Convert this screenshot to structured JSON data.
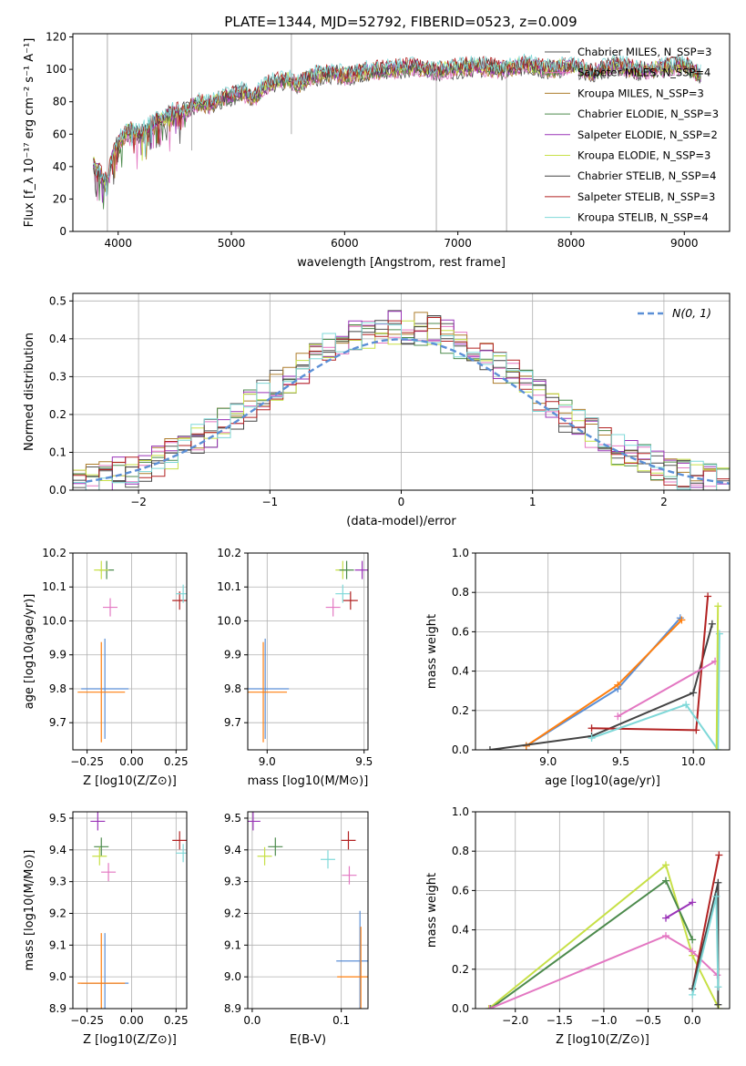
{
  "figure_title": "PLATE=1344, MJD=52792, FIBERID=0523, z=0.009",
  "chart_data": [
    {
      "id": "spectrum",
      "type": "line",
      "xlabel": "wavelength [Angstrom, rest frame]",
      "ylabel": "Flux [f_λ 10⁻¹⁷ erg cm⁻² s⁻¹ A⁻¹]",
      "xlim": [
        3600,
        9400
      ],
      "ylim": [
        0,
        122
      ],
      "xticks": [
        4000,
        5000,
        6000,
        7000,
        8000,
        9000
      ],
      "yticks": [
        0,
        20,
        40,
        60,
        80,
        100,
        120
      ],
      "x": [
        3780,
        3850,
        3900,
        3950,
        4000,
        4100,
        4200,
        4300,
        4400,
        4500,
        4600,
        4700,
        4800,
        4900,
        5000,
        5100,
        5200,
        5300,
        5400,
        5500,
        5600,
        5700,
        5800,
        5900,
        6000,
        6200,
        6400,
        6600,
        6800,
        7000,
        7200,
        7400,
        7600,
        7800,
        8000,
        8200,
        8400,
        8600,
        8800,
        9000,
        9150
      ],
      "y": [
        42,
        35,
        30,
        48,
        55,
        62,
        60,
        67,
        70,
        74,
        75,
        80,
        78,
        82,
        84,
        86,
        83,
        90,
        92,
        94,
        91,
        96,
        97,
        98,
        96,
        99,
        100,
        102,
        99,
        101,
        102,
        100,
        103,
        100,
        102,
        98,
        103,
        99,
        101,
        103,
        96
      ],
      "legend": [
        {
          "name": "Chabrier MILES, N_SSP=3",
          "color": "#555555"
        },
        {
          "name": "Salpeter MILES, N_SSP=4",
          "color": "#e377c2"
        },
        {
          "name": "Kroupa MILES, N_SSP=3",
          "color": "#ad7d2c"
        },
        {
          "name": "Chabrier ELODIE, N_SSP=3",
          "color": "#4c8a4c"
        },
        {
          "name": "Salpeter ELODIE, N_SSP=2",
          "color": "#9a33b8"
        },
        {
          "name": "Kroupa ELODIE, N_SSP=3",
          "color": "#c7e046"
        },
        {
          "name": "Chabrier STELIB, N_SSP=4",
          "color": "#444444"
        },
        {
          "name": "Salpeter STELIB, N_SSP=3",
          "color": "#b22222"
        },
        {
          "name": "Kroupa STELIB, N_SSP=4",
          "color": "#7fd8d8"
        }
      ],
      "legend_position": "top-right"
    },
    {
      "id": "residuals",
      "type": "line",
      "xlabel": "(data-model)/error",
      "ylabel": "Normed distribution",
      "xlim": [
        -2.5,
        2.5
      ],
      "ylim": [
        0,
        0.52
      ],
      "xticks": [
        -2,
        -1,
        0,
        1,
        2
      ],
      "yticks": [
        0.0,
        0.1,
        0.2,
        0.3,
        0.4,
        0.5
      ],
      "legend": "N(0, 1)",
      "legend_position": "top-right",
      "grid": true
    },
    {
      "id": "age-vs-Z",
      "type": "scatter",
      "xlabel": "Z [log10(Z/Z⊙)]",
      "ylabel": "age [log10(age/yr)]",
      "xlim": [
        -0.33,
        0.31
      ],
      "ylim": [
        9.62,
        10.2
      ],
      "xticks": [
        -0.25,
        0.0,
        0.25
      ],
      "xticklabels": [
        "−0.25",
        "0.00",
        "0.25"
      ],
      "yticks": [
        9.7,
        9.8,
        9.9,
        10.0,
        10.1,
        10.2
      ],
      "points": [
        {
          "x": -0.14,
          "y": 10.15,
          "color": "#4c8a4c"
        },
        {
          "x": -0.17,
          "y": 10.15,
          "color": "#c7e046"
        },
        {
          "x": -0.12,
          "y": 10.04,
          "color": "#e377c2"
        },
        {
          "x": 0.27,
          "y": 10.06,
          "color": "#b22222"
        },
        {
          "x": 0.29,
          "y": 10.08,
          "color": "#7fd8d8"
        },
        {
          "x": -0.15,
          "y": 9.8,
          "color": "#5b8fd6"
        },
        {
          "x": -0.17,
          "y": 9.79,
          "color": "#ff7f0e"
        }
      ]
    },
    {
      "id": "age-vs-mass",
      "type": "scatter",
      "xlabel": "mass [log10(M/M⊙)]",
      "ylabel": "",
      "xlim": [
        8.9,
        9.52
      ],
      "ylim": [
        9.62,
        10.2
      ],
      "xticks": [
        9.0,
        9.5
      ],
      "yticks": [
        9.7,
        9.8,
        9.9,
        10.0,
        10.1,
        10.2
      ],
      "points": [
        {
          "x": 9.39,
          "y": 10.15,
          "color": "#c7e046"
        },
        {
          "x": 9.41,
          "y": 10.15,
          "color": "#4c8a4c"
        },
        {
          "x": 9.49,
          "y": 10.15,
          "color": "#9a33b8"
        },
        {
          "x": 9.34,
          "y": 10.04,
          "color": "#e377c2"
        },
        {
          "x": 9.39,
          "y": 10.08,
          "color": "#7fd8d8"
        },
        {
          "x": 9.43,
          "y": 10.06,
          "color": "#b22222"
        },
        {
          "x": 8.99,
          "y": 9.8,
          "color": "#5b8fd6"
        },
        {
          "x": 8.98,
          "y": 9.79,
          "color": "#ff7f0e"
        }
      ]
    },
    {
      "id": "weight-vs-age",
      "type": "line",
      "xlabel": "age [log10(age/yr)]",
      "ylabel": "mass weight",
      "xlim": [
        8.5,
        10.25
      ],
      "ylim": [
        0,
        1.0
      ],
      "xticks": [
        9.0,
        9.5,
        10.0
      ],
      "yticks": [
        0.0,
        0.2,
        0.4,
        0.6,
        0.8,
        1.0
      ],
      "series": [
        {
          "color": "#5b8fd6",
          "x": [
            8.85,
            9.48,
            9.91
          ],
          "y": [
            0.02,
            0.31,
            0.67
          ]
        },
        {
          "color": "#ff7f0e",
          "x": [
            8.85,
            9.48,
            9.92
          ],
          "y": [
            0.02,
            0.33,
            0.66
          ]
        },
        {
          "color": "#444444",
          "x": [
            8.6,
            9.3,
            10.0,
            10.13
          ],
          "y": [
            0.0,
            0.07,
            0.29,
            0.64
          ]
        },
        {
          "color": "#b22222",
          "x": [
            9.3,
            10.02,
            10.1
          ],
          "y": [
            0.11,
            0.1,
            0.78
          ]
        },
        {
          "color": "#e377c2",
          "x": [
            9.48,
            10.15
          ],
          "y": [
            0.17,
            0.45
          ]
        },
        {
          "color": "#7fd8d8",
          "x": [
            9.3,
            9.95,
            10.17,
            10.18
          ],
          "y": [
            0.06,
            0.23,
            0.0,
            0.59
          ]
        },
        {
          "color": "#c7e046",
          "x": [
            10.16,
            10.17
          ],
          "y": [
            0.0,
            0.73
          ]
        }
      ]
    },
    {
      "id": "mass-vs-Z",
      "type": "scatter",
      "xlabel": "Z [log10(Z/Z⊙)]",
      "ylabel": "mass [log10(M/M⊙)]",
      "xlim": [
        -0.33,
        0.31
      ],
      "ylim": [
        8.9,
        9.52
      ],
      "xticks": [
        -0.25,
        0.0,
        0.25
      ],
      "xticklabels": [
        "−0.25",
        "0.00",
        "0.25"
      ],
      "yticks": [
        8.9,
        9.0,
        9.1,
        9.2,
        9.3,
        9.4,
        9.5
      ],
      "points": [
        {
          "x": -0.19,
          "y": 9.49,
          "color": "#9a33b8"
        },
        {
          "x": -0.17,
          "y": 9.41,
          "color": "#4c8a4c"
        },
        {
          "x": -0.18,
          "y": 9.38,
          "color": "#c7e046"
        },
        {
          "x": -0.13,
          "y": 9.33,
          "color": "#e377c2"
        },
        {
          "x": 0.27,
          "y": 9.43,
          "color": "#b22222"
        },
        {
          "x": 0.29,
          "y": 9.39,
          "color": "#7fd8d8"
        },
        {
          "x": -0.15,
          "y": 8.98,
          "color": "#5b8fd6"
        },
        {
          "x": -0.17,
          "y": 8.98,
          "color": "#ff7f0e"
        }
      ]
    },
    {
      "id": "mass-vs-EBV",
      "type": "scatter",
      "xlabel": "E(B-V)",
      "ylabel": "",
      "xlim": [
        -0.005,
        0.13
      ],
      "ylim": [
        8.9,
        9.52
      ],
      "xticks": [
        0.0,
        0.1
      ],
      "xticklabels": [
        "0.0",
        "0.1"
      ],
      "yticks": [
        8.9,
        9.0,
        9.1,
        9.2,
        9.3,
        9.4,
        9.5
      ],
      "points": [
        {
          "x": 0.001,
          "y": 9.49,
          "color": "#9a33b8"
        },
        {
          "x": 0.014,
          "y": 9.38,
          "color": "#c7e046"
        },
        {
          "x": 0.026,
          "y": 9.41,
          "color": "#4c8a4c"
        },
        {
          "x": 0.085,
          "y": 9.37,
          "color": "#7fd8d8"
        },
        {
          "x": 0.108,
          "y": 9.43,
          "color": "#b22222"
        },
        {
          "x": 0.109,
          "y": 9.32,
          "color": "#e377c2"
        },
        {
          "x": 0.121,
          "y": 9.05,
          "color": "#5b8fd6"
        },
        {
          "x": 0.122,
          "y": 9.0,
          "color": "#ff7f0e"
        }
      ]
    },
    {
      "id": "weight-vs-Z",
      "type": "line",
      "xlabel": "Z [log10(Z/Z⊙)]",
      "ylabel": "mass weight",
      "xlim": [
        -2.45,
        0.42
      ],
      "ylim": [
        0,
        1.0
      ],
      "xticks": [
        -2.0,
        -1.5,
        -1.0,
        -0.5,
        0.0
      ],
      "xticklabels": [
        "−2.0",
        "−1.5",
        "−1.0",
        "−0.5",
        "0.0"
      ],
      "yticks": [
        0.0,
        0.2,
        0.4,
        0.6,
        0.8,
        1.0
      ],
      "series": [
        {
          "color": "#c7e046",
          "x": [
            -2.3,
            -0.3,
            0.0,
            0.3
          ],
          "y": [
            0.0,
            0.73,
            0.27,
            0.0
          ]
        },
        {
          "color": "#4c8a4c",
          "x": [
            -2.28,
            -0.3,
            0.0
          ],
          "y": [
            0.0,
            0.65,
            0.35
          ]
        },
        {
          "color": "#e377c2",
          "x": [
            -2.29,
            -0.3,
            0.0,
            0.28
          ],
          "y": [
            0.0,
            0.37,
            0.29,
            0.17
          ]
        },
        {
          "color": "#9a33b8",
          "x": [
            -0.3,
            0.0
          ],
          "y": [
            0.46,
            0.54
          ]
        },
        {
          "color": "#b22222",
          "x": [
            0.0,
            0.3
          ],
          "y": [
            0.1,
            0.78
          ]
        },
        {
          "color": "#444444",
          "x": [
            0.0,
            0.29,
            0.29
          ],
          "y": [
            0.1,
            0.64,
            0.02
          ]
        },
        {
          "color": "#7fd8d8",
          "x": [
            0.0,
            0.27,
            0.29
          ],
          "y": [
            0.07,
            0.57,
            0.11
          ]
        }
      ]
    }
  ]
}
